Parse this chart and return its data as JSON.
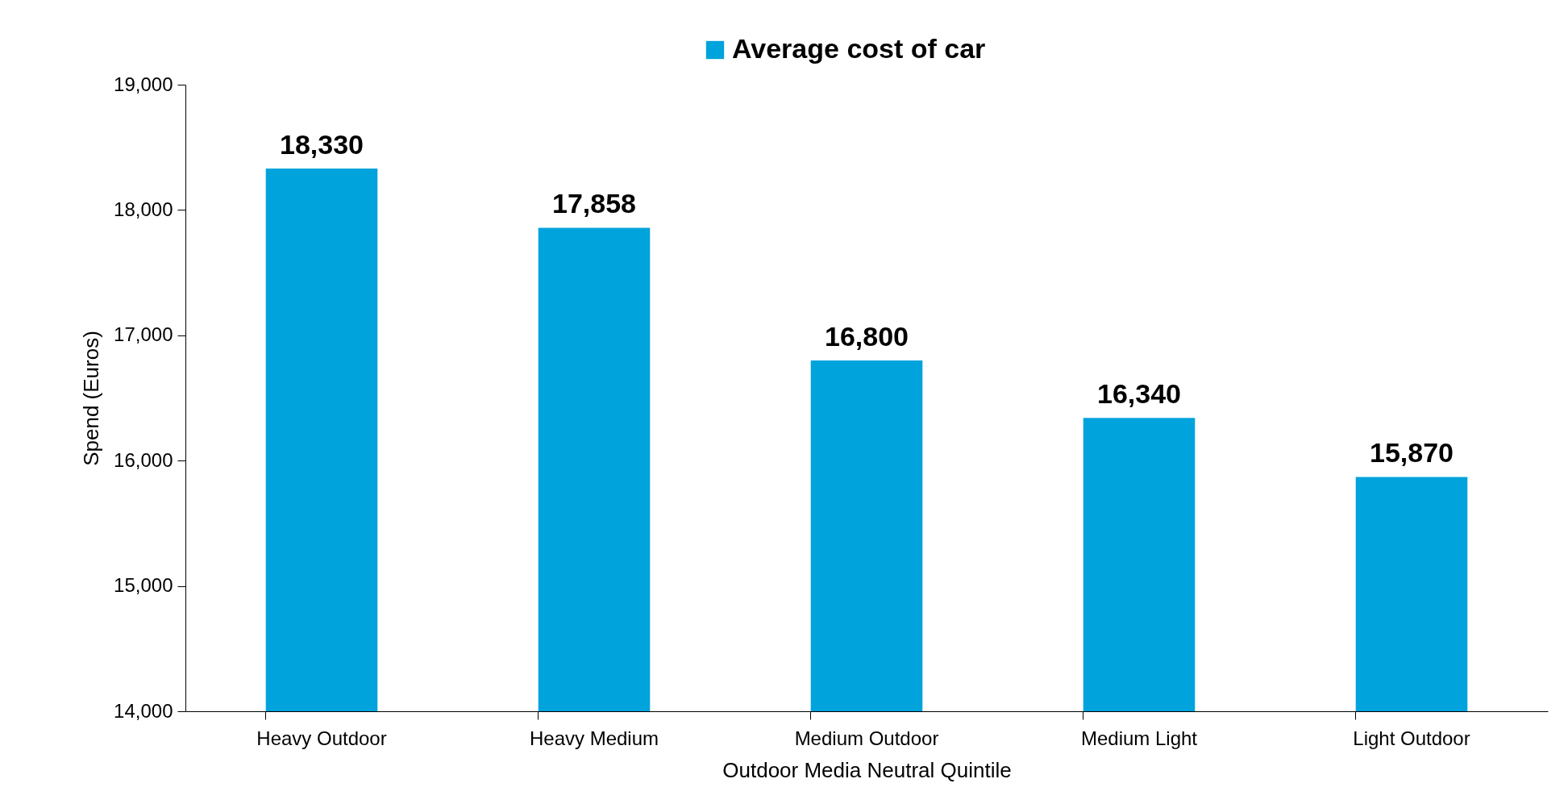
{
  "chart_data": {
    "type": "bar",
    "xlabel": "Outdoor Media Neutral Quintile",
    "ylabel": "Spend (Euros)",
    "categories": [
      "Heavy Outdoor",
      "Heavy Medium",
      "Medium Outdoor",
      "Medium Light",
      "Light Outdoor"
    ],
    "series": [
      {
        "name": "Average cost of car",
        "color": "#00a3dc",
        "values": [
          18330,
          17858,
          16800,
          16340,
          15870
        ],
        "value_labels": [
          "18,330",
          "17,858",
          "16,800",
          "16,340",
          "15,870"
        ]
      }
    ],
    "ylim": [
      14000,
      19000
    ],
    "yticks": [
      {
        "value": 14000,
        "label": "14,000"
      },
      {
        "value": 15000,
        "label": "15,000"
      },
      {
        "value": 16000,
        "label": "16,000"
      },
      {
        "value": 17000,
        "label": "17,000"
      },
      {
        "value": 18000,
        "label": "18,000"
      },
      {
        "value": 19000,
        "label": "19,000"
      }
    ],
    "legend": "top",
    "grid": false
  }
}
